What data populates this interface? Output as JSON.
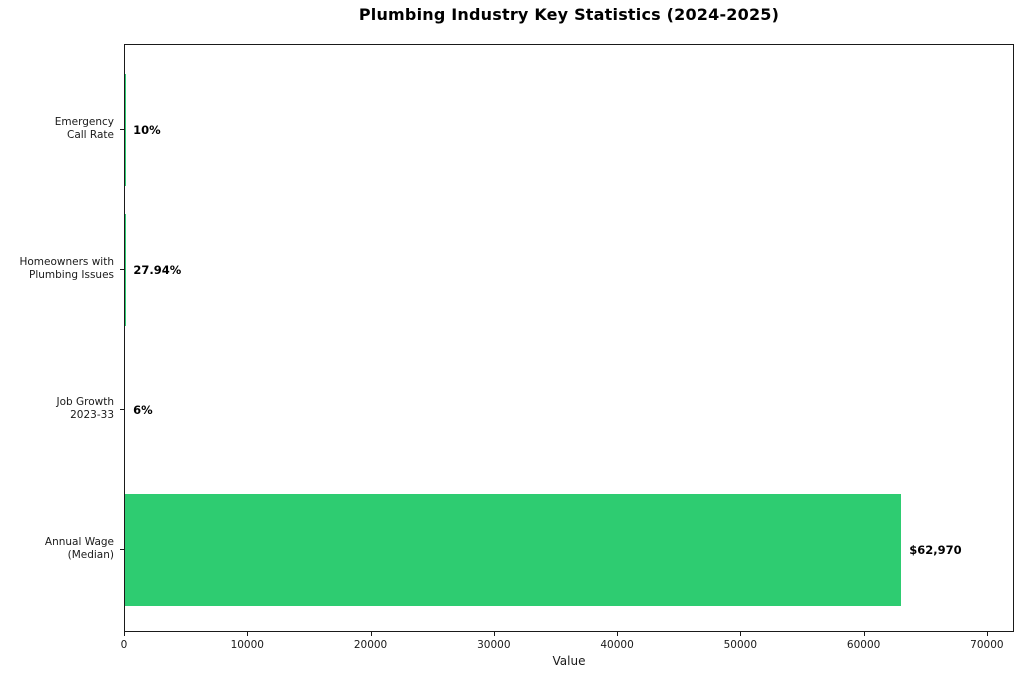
{
  "figure": {
    "background": "#ffffff"
  },
  "chart_data": {
    "type": "bar",
    "orientation": "horizontal",
    "title": "Plumbing Industry Key Statistics (2024-2025)",
    "xlabel": "Value",
    "ylabel": "",
    "categories": [
      "Emergency\nCall Rate",
      "Homeowners with\nPlumbing Issues",
      "Job Growth\n2023-33",
      "Annual Wage\n(Median)"
    ],
    "values": [
      10,
      27.94,
      6,
      62970
    ],
    "value_labels": [
      "10%",
      "27.94%",
      "6%",
      "$62,970"
    ],
    "bar_color": "#2ecc71",
    "xlim": [
      0,
      72200
    ],
    "xticks": [
      0,
      10000,
      20000,
      30000,
      40000,
      50000,
      60000,
      70000
    ],
    "grid": false,
    "legend": null,
    "colors": {
      "bar": "#2ecc71",
      "axis": "#1a1a1a",
      "text": "#000000",
      "background": "#ffffff"
    }
  }
}
